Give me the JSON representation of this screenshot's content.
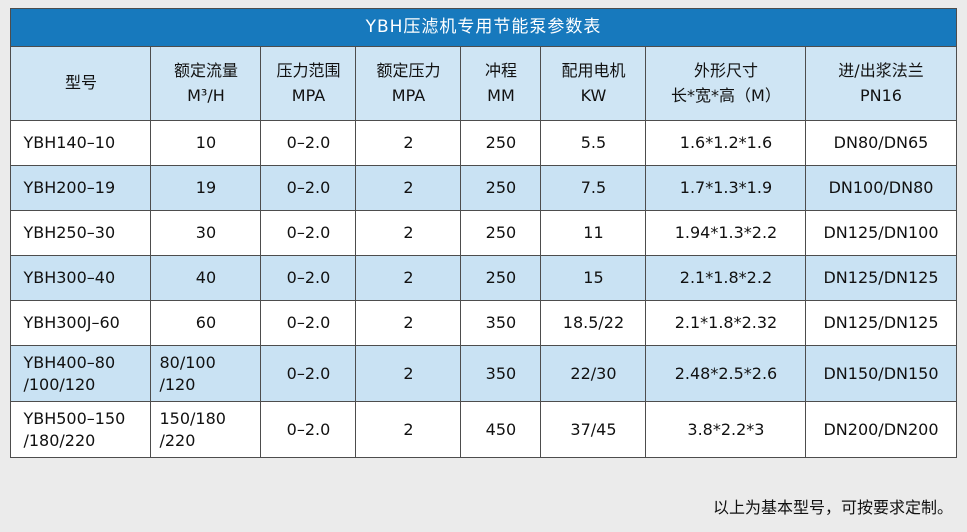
{
  "page": {
    "footnote": "以上为基本型号，可按要求定制。"
  },
  "table": {
    "title": "YBH压滤机专用节能泵参数表",
    "headers": [
      {
        "lines": [
          "型号"
        ]
      },
      {
        "lines": [
          "额定流量",
          "M³/H"
        ]
      },
      {
        "lines": [
          "压力范围",
          "MPA"
        ]
      },
      {
        "lines": [
          "额定压力",
          "MPA"
        ]
      },
      {
        "lines": [
          "冲程",
          "MM"
        ]
      },
      {
        "lines": [
          "配用电机",
          "KW"
        ]
      },
      {
        "lines": [
          "外形尺寸",
          "长*宽*高（M）"
        ]
      },
      {
        "lines": [
          "进/出浆法兰",
          "PN16"
        ]
      }
    ],
    "rows": [
      {
        "cells": [
          "YBH140–10",
          "10",
          "0–2.0",
          "2",
          "250",
          "5.5",
          "1.6*1.2*1.6",
          "DN80/DN65"
        ]
      },
      {
        "cells": [
          "YBH200–19",
          "19",
          "0–2.0",
          "2",
          "250",
          "7.5",
          "1.7*1.3*1.9",
          "DN100/DN80"
        ]
      },
      {
        "cells": [
          "YBH250–30",
          "30",
          "0–2.0",
          "2",
          "250",
          "11",
          "1.94*1.3*2.2",
          "DN125/DN100"
        ]
      },
      {
        "cells": [
          "YBH300–40",
          "40",
          "0–2.0",
          "2",
          "250",
          "15",
          "2.1*1.8*2.2",
          "DN125/DN125"
        ]
      },
      {
        "cells": [
          "YBH300J–60",
          "60",
          "0–2.0",
          "2",
          "350",
          "18.5/22",
          "2.1*1.8*2.32",
          "DN125/DN125"
        ]
      },
      {
        "cells": [
          "YBH400–80\n/100/120",
          "80/100\n/120",
          "0–2.0",
          "2",
          "350",
          "22/30",
          "2.48*2.5*2.6",
          "DN150/DN150"
        ]
      },
      {
        "cells": [
          "YBH500–150\n/180/220",
          "150/180\n/220",
          "0–2.0",
          "2",
          "450",
          "37/45",
          "3.8*2.2*3",
          "DN200/DN200"
        ]
      }
    ]
  },
  "colors": {
    "page_bg": "#ebebeb",
    "title_bg": "#1779bd",
    "header_bg": "#cfe5f4",
    "row_bg": "#ffffff",
    "row_alt_bg": "#c9e2f3",
    "border": "#4d4d4d"
  }
}
